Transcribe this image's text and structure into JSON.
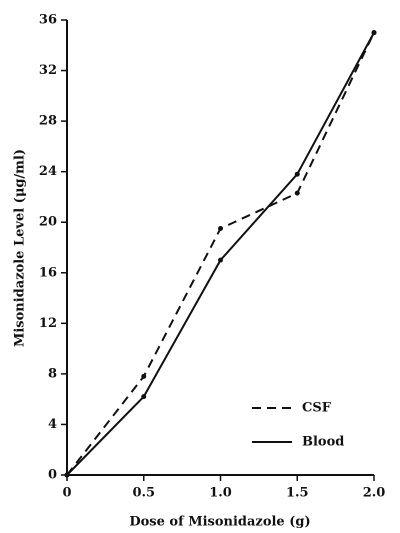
{
  "chart_data": {
    "type": "line",
    "x_label": "Dose of Misonidazole (g)",
    "y_label": "Misonidazole Level (μg/ml)",
    "x": [
      0,
      0.5,
      1.0,
      1.5,
      2.0
    ],
    "series": [
      {
        "name": "CSF",
        "color": "#111111",
        "dash": true,
        "values": [
          0,
          7.8,
          19.5,
          22.3,
          35
        ]
      },
      {
        "name": "Blood",
        "color": "#111111",
        "dash": false,
        "values": [
          0,
          6.2,
          17,
          23.8,
          35
        ]
      }
    ],
    "xlim": [
      0,
      2.0
    ],
    "xticks": [
      0,
      0.5,
      {
        "value": 1,
        "label": "1.0"
      },
      1.5,
      {
        "value": 2,
        "label": "2.0"
      }
    ],
    "ylim": [
      0,
      36
    ],
    "yticks": [
      0,
      4,
      8,
      12,
      16,
      20,
      24,
      28,
      32,
      36
    ],
    "legend": "lower right"
  }
}
